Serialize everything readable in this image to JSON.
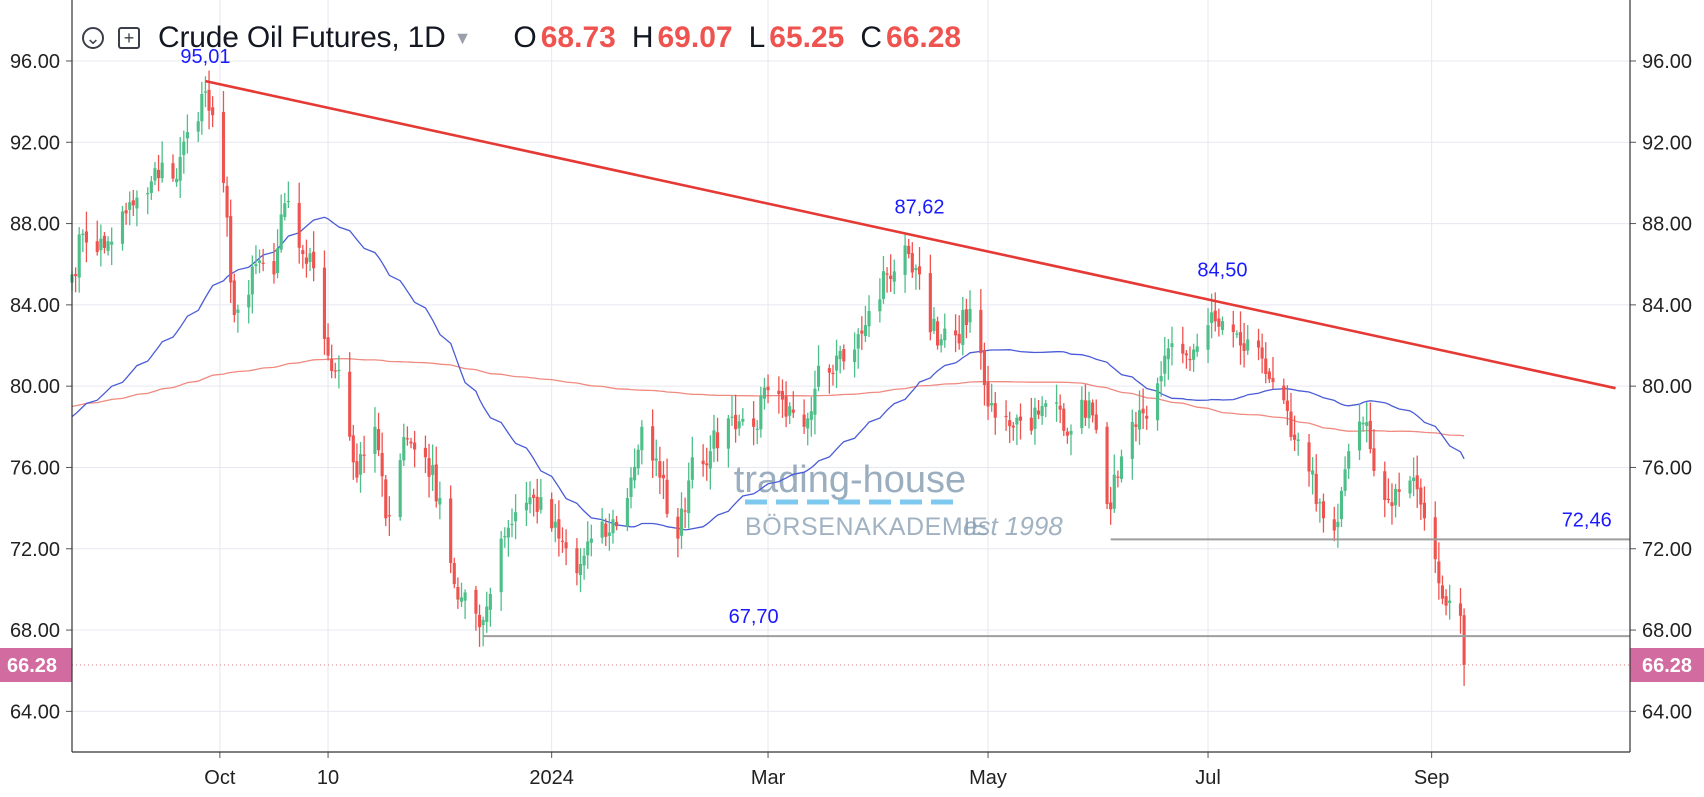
{
  "legend": {
    "title": "Crude Oil Futures, 1D",
    "o_label": "O",
    "o_value": "68.73",
    "h_label": "H",
    "h_value": "69.07",
    "l_label": "L",
    "l_value": "65.25",
    "c_label": "C",
    "c_value": "66.28"
  },
  "colors": {
    "up": "#26a69a",
    "up_candle": "#4fbf8a",
    "down": "#ef5350",
    "trendline": "#e53935",
    "ma_fast": "#4a5cd6",
    "ma_slow": "#ef8a80",
    "support": "#9e9e9e",
    "annotation": "#1a1aff",
    "price_badge": "#d26ba0",
    "watermark": "#8aa0b4"
  },
  "watermark": {
    "line1": "trading-house",
    "line2": "BÖRSENAKADEMIE",
    "line3": "est 1998"
  },
  "chart_data": {
    "type": "candlestick",
    "title": "Crude Oil Futures, 1D",
    "ylim": [
      62,
      99
    ],
    "y_ticks": [
      "64.00",
      "68.00",
      "72.00",
      "76.00",
      "80.00",
      "84.00",
      "88.00",
      "92.00",
      "96.00"
    ],
    "x_ticks": [
      {
        "label": "Oct",
        "date": "2023-10-01"
      },
      {
        "label": "10",
        "date": "2023-10-31"
      },
      {
        "label": "2024",
        "date": "2024-01-01"
      },
      {
        "label": "Mar",
        "date": "2024-03-01"
      },
      {
        "label": "May",
        "date": "2024-05-01"
      },
      {
        "label": "Jul",
        "date": "2024-07-01"
      },
      {
        "label": "Sep",
        "date": "2024-09-01"
      }
    ],
    "x_range": [
      "2023-08-21",
      "2024-10-26"
    ],
    "last_price": "66.28",
    "trendline": {
      "from": {
        "date": "2023-09-27",
        "value": 95.01
      },
      "to": {
        "date": "2024-10-22",
        "value": 79.9
      }
    },
    "support_lines": [
      {
        "value": 67.7,
        "from": "2023-12-13",
        "label": "67,70",
        "label_date": "2024-02-26"
      },
      {
        "value": 72.46,
        "from": "2024-06-04",
        "label": "72,46",
        "label_date": "2024-10-14"
      }
    ],
    "annotations": [
      {
        "label": "95,01",
        "date": "2023-09-27",
        "value": 95.01
      },
      {
        "label": "87,62",
        "date": "2024-04-12",
        "value": 87.62
      },
      {
        "label": "84,50",
        "date": "2024-07-05",
        "value": 84.5
      }
    ],
    "anchors": [
      [
        "2023-08-21",
        85.5
      ],
      [
        "2023-08-24",
        87.5
      ],
      [
        "2023-08-30",
        86.8
      ],
      [
        "2023-09-05",
        88.5
      ],
      [
        "2023-09-11",
        89.5
      ],
      [
        "2023-09-15",
        91.0
      ],
      [
        "2023-09-19",
        90.2
      ],
      [
        "2023-09-22",
        92.5
      ],
      [
        "2023-09-27",
        94.5
      ],
      [
        "2023-10-02",
        90.0
      ],
      [
        "2023-10-05",
        83.5
      ],
      [
        "2023-10-09",
        84.5
      ],
      [
        "2023-10-11",
        86.0
      ],
      [
        "2023-10-16",
        85.5
      ],
      [
        "2023-10-19",
        89.0
      ],
      [
        "2023-10-24",
        86.5
      ],
      [
        "2023-10-27",
        85.8
      ],
      [
        "2023-10-31",
        81.5
      ],
      [
        "2023-11-03",
        80.8
      ],
      [
        "2023-11-08",
        75.5
      ],
      [
        "2023-11-13",
        78.0
      ],
      [
        "2023-11-16",
        73.5
      ],
      [
        "2023-11-21",
        77.5
      ],
      [
        "2023-11-27",
        76.5
      ],
      [
        "2023-12-01",
        74.5
      ],
      [
        "2023-12-06",
        69.5
      ],
      [
        "2023-12-13",
        68.5
      ],
      [
        "2023-12-18",
        72.5
      ],
      [
        "2023-12-22",
        73.8
      ],
      [
        "2023-12-27",
        74.5
      ],
      [
        "2024-01-03",
        72.5
      ],
      [
        "2024-01-08",
        70.8
      ],
      [
        "2024-01-12",
        72.5
      ],
      [
        "2024-01-17",
        72.8
      ],
      [
        "2024-01-22",
        74.5
      ],
      [
        "2024-01-26",
        78.0
      ],
      [
        "2024-01-31",
        75.5
      ],
      [
        "2024-02-05",
        72.5
      ],
      [
        "2024-02-09",
        76.5
      ],
      [
        "2024-02-14",
        76.8
      ],
      [
        "2024-02-20",
        78.5
      ],
      [
        "2024-02-26",
        78.0
      ],
      [
        "2024-03-01",
        79.8
      ],
      [
        "2024-03-06",
        78.5
      ],
      [
        "2024-03-11",
        78.0
      ],
      [
        "2024-03-15",
        81.0
      ],
      [
        "2024-03-20",
        81.5
      ],
      [
        "2024-03-25",
        81.8
      ],
      [
        "2024-03-28",
        83.0
      ],
      [
        "2024-04-03",
        85.5
      ],
      [
        "2024-04-09",
        86.5
      ],
      [
        "2024-04-12",
        85.5
      ],
      [
        "2024-04-17",
        82.0
      ],
      [
        "2024-04-22",
        82.5
      ],
      [
        "2024-04-26",
        83.8
      ],
      [
        "2024-05-01",
        79.0
      ],
      [
        "2024-05-06",
        78.5
      ],
      [
        "2024-05-10",
        78.3
      ],
      [
        "2024-05-15",
        78.6
      ],
      [
        "2024-05-20",
        79.2
      ],
      [
        "2024-05-24",
        77.8
      ],
      [
        "2024-05-29",
        79.3
      ],
      [
        "2024-06-03",
        74.2
      ],
      [
        "2024-06-06",
        75.5
      ],
      [
        "2024-06-11",
        78.0
      ],
      [
        "2024-06-14",
        78.4
      ],
      [
        "2024-06-19",
        81.5
      ],
      [
        "2024-06-24",
        81.6
      ],
      [
        "2024-06-27",
        81.8
      ],
      [
        "2024-07-01",
        83.0
      ],
      [
        "2024-07-05",
        83.2
      ],
      [
        "2024-07-10",
        82.0
      ],
      [
        "2024-07-15",
        81.9
      ],
      [
        "2024-07-19",
        80.2
      ],
      [
        "2024-07-24",
        77.5
      ],
      [
        "2024-07-29",
        75.8
      ],
      [
        "2024-08-02",
        73.5
      ],
      [
        "2024-08-05",
        72.9
      ],
      [
        "2024-08-09",
        76.8
      ],
      [
        "2024-08-13",
        78.2
      ],
      [
        "2024-08-19",
        74.4
      ],
      [
        "2024-08-23",
        74.8
      ],
      [
        "2024-08-27",
        75.5
      ],
      [
        "2024-08-30",
        73.5
      ],
      [
        "2024-09-03",
        70.3
      ],
      [
        "2024-09-05",
        69.2
      ],
      [
        "2024-09-09",
        68.7
      ],
      [
        "2024-09-10",
        66.28
      ]
    ]
  }
}
